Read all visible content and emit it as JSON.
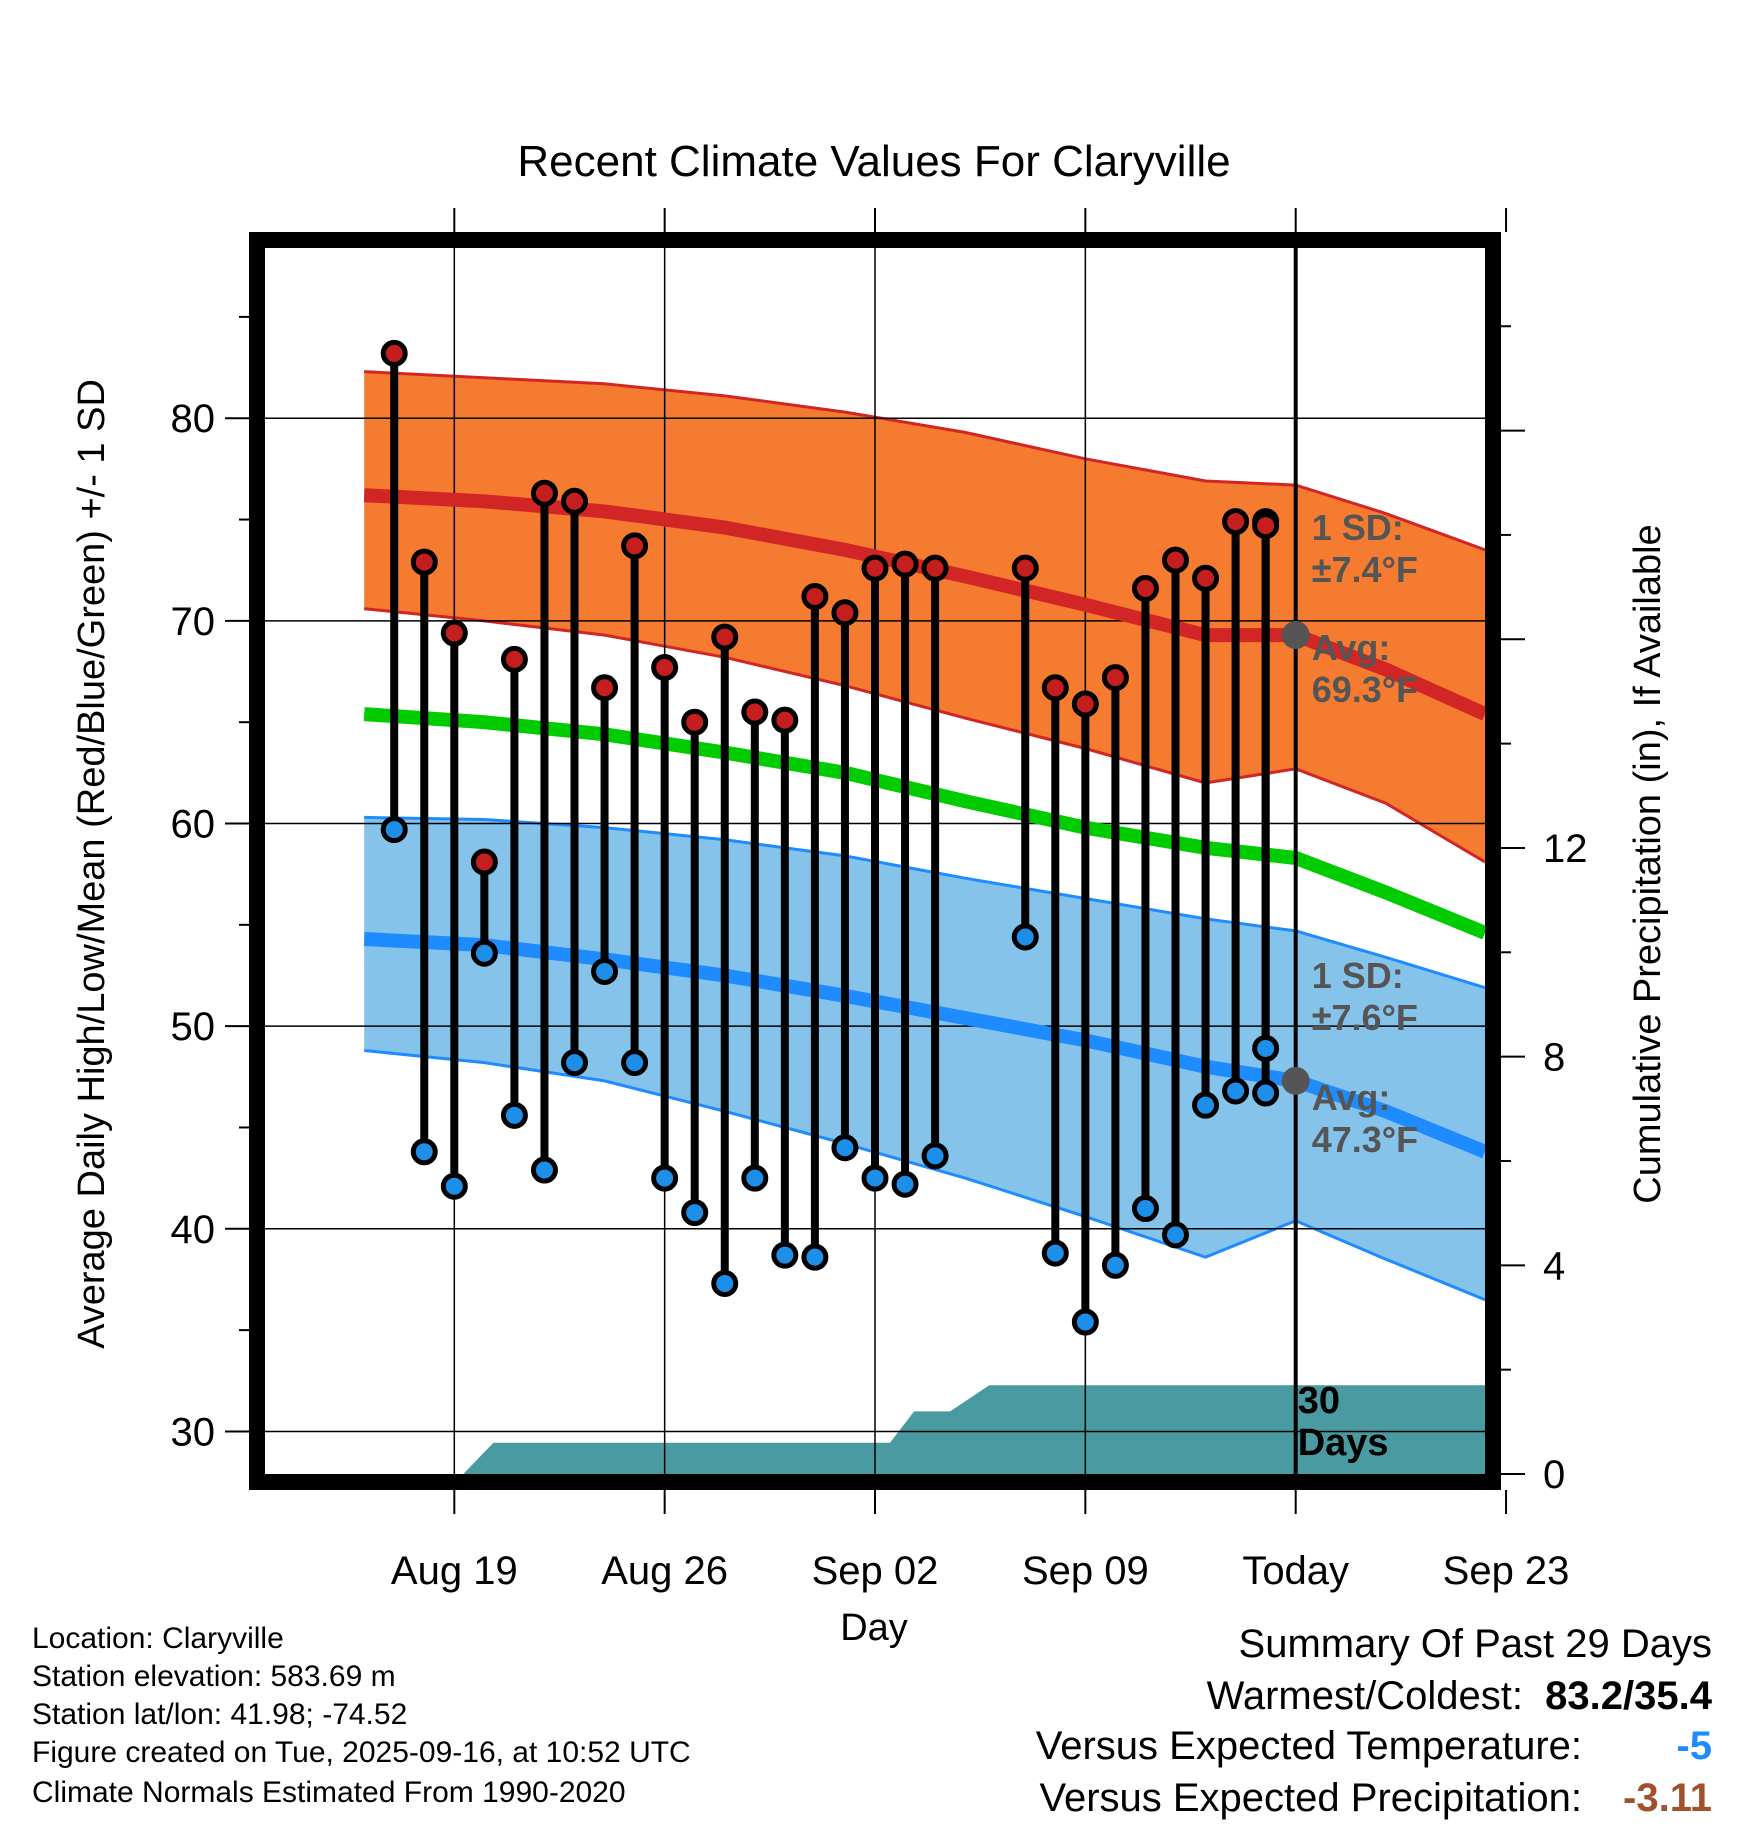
{
  "chart_data": {
    "type": "line",
    "title": "Recent Climate Values For Claryville",
    "xlabel": "Day",
    "ylabel": "Average Daily High/Low/Mean (Red/Blue/Green) +/- 1 SD",
    "y2label": "Cumulative Precipitation (in), If Available",
    "ylim": [
      27.9,
      88.4
    ],
    "y2lim": [
      0,
      23.5
    ],
    "xlim": [
      -3.3,
      37.3
    ],
    "x_day0": "Aug 16",
    "yticks": [
      30,
      40,
      50,
      60,
      70,
      80
    ],
    "y2ticks": [
      0,
      4,
      8,
      12
    ],
    "xticks": [
      {
        "day": 3,
        "label": "Aug 19"
      },
      {
        "day": 10,
        "label": "Aug 26"
      },
      {
        "day": 17,
        "label": "Sep 02"
      },
      {
        "day": 24,
        "label": "Sep 09"
      },
      {
        "day": 31,
        "label": "Today"
      },
      {
        "day": 38,
        "label": "Sep 23"
      }
    ],
    "today_day": 31,
    "observed": {
      "days": [
        1,
        2,
        3,
        4,
        5,
        6,
        7,
        8,
        9,
        10,
        11,
        12,
        13,
        14,
        15,
        16,
        17,
        18,
        19,
        22,
        23,
        24,
        25,
        26,
        27,
        28,
        29,
        30
      ],
      "highs": [
        83.2,
        72.9,
        69.4,
        58.1,
        68.1,
        76.3,
        75.9,
        66.7,
        73.7,
        67.7,
        65.0,
        69.2,
        65.5,
        65.1,
        71.2,
        70.4,
        72.6,
        72.8,
        72.6,
        72.6,
        66.7,
        65.9,
        67.2,
        71.6,
        73.0,
        72.1,
        74.9,
        74.9
      ],
      "lows": [
        59.7,
        43.8,
        42.1,
        53.6,
        45.6,
        42.9,
        48.2,
        52.7,
        48.2,
        42.5,
        40.8,
        37.3,
        42.5,
        38.7,
        38.6,
        44.0,
        42.5,
        42.2,
        43.6,
        54.4,
        38.8,
        35.4,
        38.2,
        41.0,
        39.7,
        46.1,
        46.8,
        48.9
      ],
      "extra_point": {
        "day": 30,
        "high": 74.7,
        "low": 46.7
      }
    },
    "normals": {
      "days": [
        0,
        4,
        8,
        12,
        16,
        20,
        24,
        28,
        31,
        34,
        37.3
      ],
      "high_avg": [
        76.2,
        75.9,
        75.4,
        74.6,
        73.5,
        72.2,
        70.8,
        69.3,
        69.3,
        67.6,
        65.4
      ],
      "high_upper": [
        82.3,
        82.0,
        81.7,
        81.1,
        80.3,
        79.3,
        78.0,
        76.9,
        76.7,
        75.3,
        73.5
      ],
      "high_lower": [
        70.6,
        70.0,
        69.3,
        68.2,
        66.8,
        65.2,
        63.7,
        62.0,
        62.7,
        61.0,
        58.1
      ],
      "mean_avg": [
        65.4,
        65.0,
        64.4,
        63.5,
        62.5,
        61.1,
        59.8,
        58.8,
        58.3,
        56.6,
        54.6
      ],
      "low_avg": [
        54.3,
        54.0,
        53.3,
        52.5,
        51.5,
        50.4,
        49.3,
        48.0,
        47.3,
        45.8,
        43.8
      ],
      "low_upper": [
        60.3,
        60.2,
        59.8,
        59.2,
        58.4,
        57.3,
        56.3,
        55.3,
        54.7,
        53.4,
        51.9
      ],
      "low_lower": [
        48.8,
        48.2,
        47.3,
        45.8,
        44.2,
        42.5,
        40.6,
        38.6,
        40.4,
        38.5,
        36.5
      ]
    },
    "precip": {
      "points": [
        [
          3.3,
          0
        ],
        [
          4.3,
          0.6
        ],
        [
          16.0,
          0.6
        ],
        [
          17.5,
          0.6
        ],
        [
          18.3,
          1.2
        ],
        [
          19.5,
          1.2
        ],
        [
          20.8,
          1.7
        ],
        [
          37.3,
          1.7
        ]
      ],
      "days_label": "30",
      "days_label2": "Days"
    },
    "annotations": {
      "high_sd": "1 SD:",
      "high_sd_val": "±7.4°F",
      "high_avg_label": "Avg:",
      "high_avg_val": "69.3°F",
      "high_avg_point": 69.3,
      "low_sd": "1 SD:",
      "low_sd_val": "±7.6°F",
      "low_avg_label": "Avg:",
      "low_avg_val": "47.3°F",
      "low_avg_point": 47.3
    },
    "colors": {
      "high_band": "#f47b2f",
      "high_line": "#d22626",
      "mean_line": "#00cc00",
      "low_band": "#85c3ea",
      "low_line": "#1e8cff",
      "precip": "#4a9aa2",
      "high_marker": "#c41e1e",
      "low_marker": "#1e8fe8",
      "annotation": "#555555"
    }
  },
  "info": {
    "location": "Location: Claryville",
    "elevation": "Station elevation: 583.69 m",
    "latlon": "Station lat/lon: 41.98; -74.52",
    "created": "Figure created on Tue, 2025-09-16, at 10:52 UTC",
    "normals": "Climate Normals Estimated From 1990-2020"
  },
  "summary": {
    "title": "Summary Of Past 29 Days",
    "warm_cold_label": "Warmest/Coldest:",
    "warm_cold_value": "83.2/35.4",
    "temp_label": "Versus Expected Temperature:",
    "temp_value": "-5",
    "temp_color": "#1e8cff",
    "precip_label": "Versus Expected Precipitation:",
    "precip_value": "-3.11",
    "precip_color": "#a0522d"
  }
}
